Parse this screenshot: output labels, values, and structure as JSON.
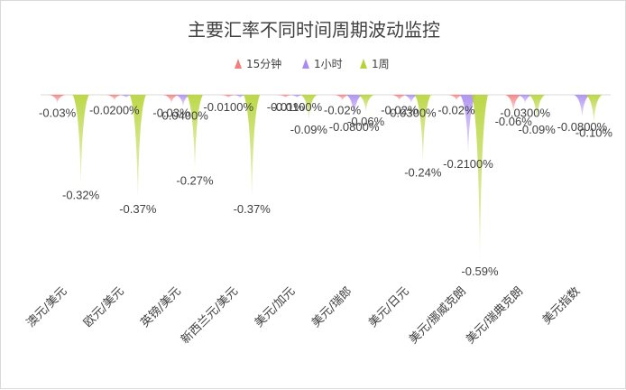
{
  "chart_data": {
    "type": "bar",
    "title": "主要汇率不同时间周期波动监控",
    "categories": [
      "澳元/美元",
      "欧元/美元",
      "英镑/美元",
      "新西兰元/美元",
      "美元/加元",
      "美元/瑞郎",
      "美元/日元",
      "美元/挪威克朗",
      "美元/瑞典克朗",
      "美元指数"
    ],
    "series": [
      {
        "name": "15分钟",
        "color": "#f47c7c",
        "values": [
          -0.03,
          -0.02,
          -0.03,
          -0.01,
          -0.01,
          -0.02,
          -0.02,
          -0.02,
          -0.06,
          0
        ],
        "labels": [
          "-0.03%",
          "-0.0200%",
          "-0.03%",
          "-0.0100%",
          "-0.01%",
          "-0.02%",
          "-0.02%",
          "-0.02%",
          "-0.06%",
          ""
        ]
      },
      {
        "name": "1小时",
        "color": "#a98af0",
        "values": [
          0,
          -0.01,
          -0.04,
          -0.01,
          -0.01,
          -0.08,
          -0.03,
          -0.21,
          -0.03,
          -0.08
        ],
        "labels": [
          "",
          "",
          "-0.0400%",
          "",
          "-0.0100%",
          "-0.0800%",
          "-0.0300%",
          "-0.2100%",
          "-0.0300%",
          "-0.0800%"
        ]
      },
      {
        "name": "1周",
        "color": "#b5d334",
        "values": [
          -0.32,
          -0.37,
          -0.27,
          -0.37,
          -0.09,
          -0.06,
          -0.24,
          -0.59,
          -0.09,
          -0.1
        ],
        "labels": [
          "-0.32%",
          "-0.37%",
          "-0.27%",
          "-0.37%",
          "-0.09%",
          "-0.06%",
          "-0.24%",
          "-0.59%",
          "-0.09%",
          "-0.10%"
        ]
      }
    ],
    "ylim": [
      -0.64,
      0
    ],
    "grid": false,
    "legend_position": "top"
  }
}
